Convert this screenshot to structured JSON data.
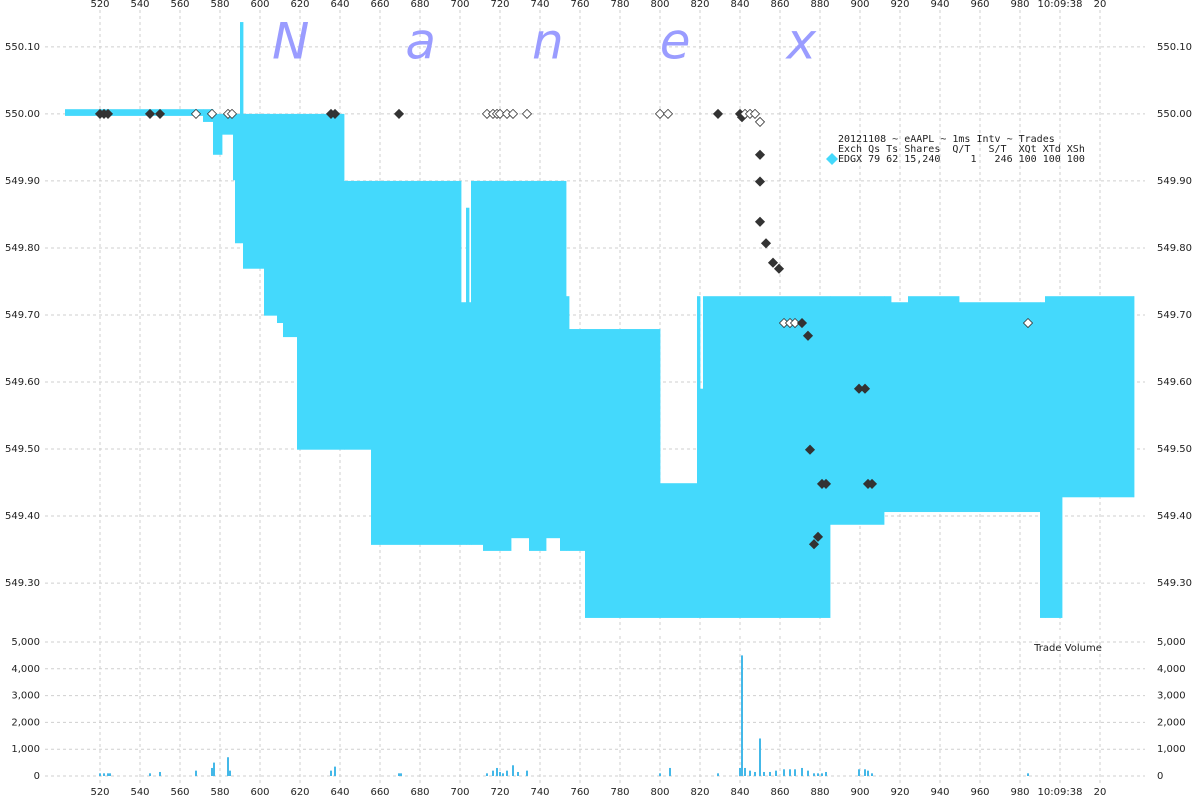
{
  "chart_data": [
    {
      "type": "range_area",
      "watermark": "Nanex",
      "legend_title": "20121108 ~ eAAPL ~ 1ms Intv ~ Trades",
      "legend_header": "Exch Qs Ts Shares  Q/T   S/T  XQt XTd XSh",
      "xlim": [
        492.5,
        1042.5
      ],
      "xticks": [
        520,
        540,
        560,
        580,
        600,
        620,
        640,
        660,
        680,
        700,
        720,
        740,
        760,
        780,
        800,
        820,
        840,
        860,
        880,
        900,
        920,
        940,
        960,
        980,
        {
          "value": 1000,
          "label": "10:09:38"
        },
        {
          "value": 1020,
          "label": "20"
        }
      ],
      "ylim": [
        549.23,
        550.155
      ],
      "yticks": [
        {
          "value": 549.3,
          "label": "549.30"
        },
        {
          "value": 549.4,
          "label": "549.40"
        },
        {
          "value": 549.5,
          "label": "549.50"
        },
        {
          "value": 549.6,
          "label": "549.60"
        },
        {
          "value": 549.7,
          "label": "549.70"
        },
        {
          "value": 549.8,
          "label": "549.80"
        },
        {
          "value": 549.9,
          "label": "549.90"
        },
        {
          "value": 550.0,
          "label": "550.00"
        },
        {
          "value": 550.1,
          "label": "550.10"
        }
      ],
      "grid": true,
      "x": [
        502.5,
        571.5,
        576.5,
        581,
        586.5,
        587.5,
        590,
        591.5,
        602,
        608.5,
        611.5,
        618.5,
        642,
        655.5,
        700.5,
        703,
        704.5,
        705.5,
        711.5,
        725.5,
        734.5,
        743,
        750,
        753,
        754.5,
        762.5,
        800,
        818.5,
        820,
        821.5,
        885,
        912,
        915.5,
        924,
        949.5,
        990,
        992.5,
        1001,
        1036.5
      ],
      "series": [
        {
          "name": "EDGX",
          "color": "#44d9fc",
          "stats": "79 62 15,240     1   246 100 100 100",
          "high": [
            550.007,
            550.007,
            550.0,
            550.0,
            550.0,
            550.0,
            550.137,
            550.0,
            550.0,
            550.0,
            550.0,
            550.0,
            549.9,
            549.9,
            549.719,
            549.86,
            549.719,
            549.9,
            549.9,
            549.9,
            549.9,
            549.9,
            549.9,
            549.728,
            549.679,
            549.679,
            549.449,
            549.728,
            549.59,
            549.728,
            549.728,
            549.728,
            549.719,
            549.728,
            549.719,
            549.719,
            549.728,
            549.728,
            549.728
          ],
          "low": [
            549.997,
            549.988,
            549.939,
            549.969,
            549.901,
            549.807,
            549.807,
            549.769,
            549.699,
            549.688,
            549.667,
            549.499,
            549.499,
            549.357,
            549.357,
            549.357,
            549.357,
            549.357,
            549.348,
            549.367,
            549.348,
            549.367,
            549.348,
            549.348,
            549.348,
            549.248,
            549.248,
            549.248,
            549.248,
            549.248,
            549.387,
            549.406,
            549.406,
            549.406,
            549.406,
            549.248,
            549.248,
            549.428,
            549.428
          ]
        }
      ],
      "trades": {
        "color": "#333333",
        "x": [
          520,
          522,
          524,
          545,
          550,
          568,
          576,
          584,
          586,
          635.5,
          637.5,
          669.5,
          713.5,
          716.5,
          718.5,
          720,
          723.5,
          726.5,
          733.5,
          800,
          804,
          829,
          840,
          841,
          842.5,
          845,
          847.5,
          850,
          850,
          850,
          850,
          853,
          856.5,
          859.5,
          862,
          865,
          867.5,
          871,
          874,
          875,
          877,
          879,
          881,
          883,
          899.5,
          902.5,
          904,
          906,
          984
        ],
        "values": [
          550.0,
          550.0,
          550.0,
          550.0,
          550.0,
          550.0,
          550.0,
          550.0,
          550.0,
          550.0,
          550.0,
          550.0,
          550.0,
          550.0,
          550.0,
          550.0,
          550.0,
          550.0,
          550.0,
          550.0,
          550.0,
          550.0,
          550.0,
          549.995,
          550.0,
          550.0,
          550.0,
          549.988,
          549.939,
          549.899,
          549.839,
          549.807,
          549.778,
          549.769,
          549.688,
          549.688,
          549.688,
          549.688,
          549.669,
          549.499,
          549.358,
          549.369,
          549.448,
          549.448,
          549.59,
          549.59,
          549.448,
          549.448,
          549.688
        ],
        "filled": [
          true,
          true,
          true,
          true,
          true,
          false,
          false,
          false,
          false,
          true,
          true,
          true,
          false,
          false,
          false,
          false,
          false,
          false,
          false,
          false,
          false,
          true,
          true,
          true,
          false,
          false,
          false,
          false,
          true,
          true,
          true,
          true,
          true,
          true,
          false,
          false,
          false,
          true,
          true,
          true,
          true,
          true,
          true,
          true,
          true,
          true,
          true,
          true,
          false
        ]
      }
    },
    {
      "type": "bar",
      "title": "Trade Volume",
      "color": "#44b8e8",
      "ylim": [
        0,
        5000
      ],
      "yticks": [
        0,
        {
          "value": 1000,
          "label": "1,000"
        },
        {
          "value": 2000,
          "label": "2,000"
        },
        {
          "value": 3000,
          "label": "3,000"
        },
        {
          "value": 4000,
          "label": "4,000"
        },
        {
          "value": 5000,
          "label": "5,000"
        }
      ],
      "x": [
        520,
        522,
        524,
        525,
        545,
        550,
        568,
        576,
        577,
        584,
        585,
        635.5,
        637.5,
        669.5,
        670.5,
        713.5,
        716.5,
        718.5,
        720,
        721.5,
        723.5,
        726.5,
        729,
        733.5,
        800,
        805,
        829,
        840,
        841,
        842.5,
        845,
        847.5,
        850,
        852,
        855,
        858,
        862,
        865,
        867.5,
        871,
        874,
        877,
        879,
        881,
        883,
        899.5,
        902.5,
        904,
        906,
        984
      ],
      "values": [
        100,
        100,
        100,
        100,
        100,
        150,
        200,
        300,
        500,
        700,
        200,
        200,
        350,
        100,
        100,
        100,
        200,
        300,
        150,
        100,
        200,
        400,
        150,
        200,
        100,
        300,
        100,
        300,
        4500,
        300,
        200,
        150,
        1400,
        150,
        150,
        200,
        250,
        250,
        250,
        300,
        200,
        100,
        100,
        100,
        150,
        250,
        250,
        200,
        100,
        100
      ]
    }
  ]
}
